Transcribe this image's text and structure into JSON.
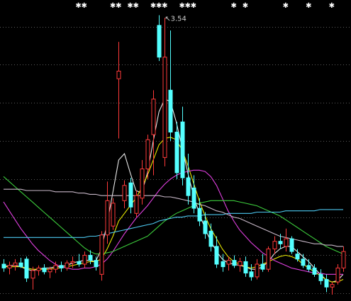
{
  "chart_data": {
    "type": "candlestick",
    "background": "#000000",
    "up_color": "#ff3a3a",
    "down_color": "#54ffff",
    "grid": true,
    "grid_color": "#5a5a5a",
    "ylim": [
      1.29,
      3.66
    ],
    "yticks": [
      3.45,
      3.15,
      2.85,
      2.55,
      2.25,
      1.95,
      1.65,
      1.35
    ],
    "candles": {
      "open": [
        1.58,
        1.55,
        1.57,
        1.59,
        1.62,
        1.47,
        1.53,
        1.55,
        1.52,
        1.54,
        1.57,
        1.55,
        1.59,
        1.6,
        1.58,
        1.65,
        1.61,
        1.5,
        1.81,
        1.88,
        3.04,
        2.08,
        2.22,
        1.98,
        2.1,
        2.33,
        2.6,
        3.46,
        2.42,
        2.95,
        2.62,
        2.7,
        2.26,
        2.18,
        2.02,
        1.92,
        1.84,
        1.72,
        1.6,
        1.58,
        1.61,
        1.57,
        1.6,
        1.52,
        1.48,
        1.58,
        1.54,
        1.7,
        1.76,
        1.72,
        1.78,
        1.66,
        1.62,
        1.57,
        1.55,
        1.5,
        1.46,
        1.4,
        1.44,
        1.55
      ],
      "high": [
        1.62,
        1.6,
        1.62,
        1.63,
        1.64,
        1.56,
        1.57,
        1.58,
        1.56,
        1.6,
        1.6,
        1.61,
        1.64,
        1.66,
        1.68,
        1.69,
        1.64,
        1.84,
        2.23,
        2.1,
        3.33,
        2.24,
        2.26,
        2.16,
        2.4,
        2.6,
        2.95,
        3.54,
        3.52,
        3.42,
        2.7,
        2.82,
        2.45,
        2.28,
        2.1,
        1.99,
        1.9,
        1.8,
        1.66,
        1.64,
        1.65,
        1.63,
        1.64,
        1.58,
        1.62,
        1.66,
        1.72,
        1.8,
        1.82,
        1.86,
        1.8,
        1.7,
        1.66,
        1.62,
        1.58,
        1.54,
        1.5,
        1.44,
        1.58,
        1.72
      ],
      "low": [
        1.52,
        1.5,
        1.53,
        1.55,
        1.44,
        1.38,
        1.49,
        1.5,
        1.47,
        1.51,
        1.52,
        1.53,
        1.55,
        1.56,
        1.55,
        1.58,
        1.53,
        1.45,
        1.74,
        1.85,
        2.57,
        2.02,
        1.98,
        1.95,
        2.05,
        2.25,
        2.28,
        3.18,
        2.35,
        2.55,
        2.25,
        2.2,
        2.05,
        1.98,
        1.88,
        1.78,
        1.68,
        1.55,
        1.52,
        1.53,
        1.55,
        1.52,
        1.48,
        1.45,
        1.46,
        1.52,
        1.52,
        1.66,
        1.7,
        1.68,
        1.66,
        1.6,
        1.55,
        1.52,
        1.48,
        1.42,
        1.36,
        1.34,
        1.42,
        1.52
      ],
      "close": [
        1.55,
        1.57,
        1.59,
        1.56,
        1.47,
        1.53,
        1.55,
        1.52,
        1.54,
        1.57,
        1.55,
        1.59,
        1.6,
        1.58,
        1.65,
        1.61,
        1.56,
        1.81,
        2.08,
        2.06,
        3.1,
        2.2,
        2.03,
        2.12,
        2.33,
        2.56,
        2.88,
        3.21,
        3.21,
        2.62,
        2.3,
        2.26,
        2.12,
        2.02,
        1.92,
        1.82,
        1.72,
        1.58,
        1.56,
        1.61,
        1.57,
        1.6,
        1.51,
        1.48,
        1.58,
        1.54,
        1.7,
        1.76,
        1.74,
        1.78,
        1.68,
        1.62,
        1.57,
        1.54,
        1.5,
        1.45,
        1.4,
        1.42,
        1.55,
        1.68
      ]
    },
    "signals": [
      null,
      null,
      null,
      null,
      null,
      null,
      null,
      null,
      null,
      null,
      null,
      null,
      null,
      "✱",
      "✱",
      null,
      null,
      null,
      null,
      "✱",
      "✱",
      null,
      "✱",
      "✱",
      null,
      null,
      "✱",
      "✱",
      "✱",
      null,
      null,
      "✱",
      "✱",
      "✱",
      null,
      null,
      null,
      null,
      null,
      null,
      "✱",
      null,
      "✱",
      null,
      null,
      null,
      null,
      null,
      null,
      "✱",
      null,
      null,
      null,
      "✱",
      null,
      null,
      null,
      "✱",
      null,
      null
    ],
    "peak_arrow": "↖",
    "peak_value": 3.54,
    "lines": [
      {
        "color": "#e8e8e8",
        "values": [
          1.56,
          1.57,
          1.57,
          1.56,
          1.54,
          1.53,
          1.54,
          1.55,
          1.55,
          1.56,
          1.56,
          1.57,
          1.59,
          1.6,
          1.61,
          1.61,
          1.6,
          1.7,
          1.9,
          2.15,
          2.4,
          2.45,
          2.3,
          2.16,
          2.14,
          2.3,
          2.55,
          2.78,
          2.88,
          2.86,
          2.7,
          2.5,
          2.3,
          2.12,
          1.98,
          1.86,
          1.76,
          1.68,
          1.62,
          1.59,
          1.58,
          1.57,
          1.56,
          1.54,
          1.54,
          1.56,
          1.6,
          1.66,
          1.7,
          1.72,
          1.72,
          1.68,
          1.64,
          1.6,
          1.55,
          1.5,
          1.46,
          1.44,
          1.45,
          1.5
        ]
      },
      {
        "color": "#e6e600",
        "values": [
          1.56,
          1.56,
          1.56,
          1.56,
          1.55,
          1.54,
          1.54,
          1.54,
          1.54,
          1.55,
          1.55,
          1.56,
          1.57,
          1.58,
          1.59,
          1.6,
          1.6,
          1.62,
          1.7,
          1.8,
          1.92,
          1.98,
          2.04,
          2.1,
          2.18,
          2.28,
          2.4,
          2.52,
          2.57,
          2.58,
          2.56,
          2.48,
          2.36,
          2.22,
          2.08,
          1.96,
          1.86,
          1.78,
          1.7,
          1.64,
          1.6,
          1.58,
          1.56,
          1.55,
          1.56,
          1.58,
          1.6,
          1.62,
          1.64,
          1.65,
          1.64,
          1.62,
          1.58,
          1.55,
          1.52,
          1.49,
          1.46,
          1.44,
          1.44,
          1.46
        ]
      },
      {
        "color": "#e040e0",
        "values": [
          2.07,
          2.0,
          1.93,
          1.86,
          1.8,
          1.74,
          1.69,
          1.65,
          1.61,
          1.58,
          1.56,
          1.55,
          1.54,
          1.54,
          1.55,
          1.55,
          1.56,
          1.58,
          1.62,
          1.68,
          1.75,
          1.82,
          1.88,
          1.94,
          1.99,
          2.04,
          2.1,
          2.16,
          2.21,
          2.25,
          2.28,
          2.3,
          2.31,
          2.32,
          2.32,
          2.31,
          2.27,
          2.2,
          2.1,
          2.0,
          1.92,
          1.85,
          1.8,
          1.75,
          1.71,
          1.67,
          1.64,
          1.61,
          1.59,
          1.57,
          1.55,
          1.54,
          1.53,
          1.52,
          1.51,
          1.51,
          1.5,
          1.5,
          1.5,
          1.5
        ]
      },
      {
        "color": "#3ccc3c",
        "values": [
          2.27,
          2.23,
          2.19,
          2.15,
          2.11,
          2.07,
          2.03,
          1.99,
          1.95,
          1.91,
          1.87,
          1.83,
          1.79,
          1.75,
          1.71,
          1.68,
          1.66,
          1.66,
          1.67,
          1.68,
          1.7,
          1.72,
          1.74,
          1.76,
          1.78,
          1.8,
          1.84,
          1.88,
          1.92,
          1.95,
          1.98,
          2.0,
          2.02,
          2.04,
          2.06,
          2.07,
          2.08,
          2.08,
          2.08,
          2.08,
          2.08,
          2.07,
          2.06,
          2.05,
          2.04,
          2.02,
          2.0,
          1.98,
          1.96,
          1.93,
          1.9,
          1.87,
          1.84,
          1.81,
          1.78,
          1.75,
          1.72,
          1.7,
          1.68,
          1.66
        ]
      },
      {
        "color": "#4cc8f0",
        "values": [
          1.79,
          1.79,
          1.79,
          1.79,
          1.79,
          1.79,
          1.79,
          1.79,
          1.79,
          1.79,
          1.79,
          1.79,
          1.79,
          1.79,
          1.79,
          1.8,
          1.8,
          1.81,
          1.82,
          1.83,
          1.84,
          1.85,
          1.86,
          1.87,
          1.88,
          1.89,
          1.9,
          1.92,
          1.93,
          1.94,
          1.95,
          1.95,
          1.96,
          1.96,
          1.96,
          1.97,
          1.97,
          1.97,
          1.97,
          1.98,
          1.98,
          1.98,
          1.98,
          1.98,
          1.99,
          1.99,
          1.99,
          1.99,
          1.99,
          2.0,
          2.0,
          2.0,
          2.0,
          2.0,
          2.0,
          2.01,
          2.01,
          2.01,
          2.01,
          2.01
        ]
      },
      {
        "color": "#c8b8c8",
        "values": [
          2.17,
          2.17,
          2.17,
          2.17,
          2.16,
          2.16,
          2.16,
          2.16,
          2.16,
          2.15,
          2.15,
          2.15,
          2.15,
          2.14,
          2.14,
          2.13,
          2.13,
          2.12,
          2.12,
          2.12,
          2.12,
          2.12,
          2.12,
          2.12,
          2.12,
          2.12,
          2.12,
          2.12,
          2.11,
          2.11,
          2.1,
          2.09,
          2.08,
          2.07,
          2.05,
          2.04,
          2.02,
          2.0,
          1.99,
          1.97,
          1.95,
          1.94,
          1.92,
          1.9,
          1.88,
          1.86,
          1.84,
          1.82,
          1.8,
          1.79,
          1.78,
          1.77,
          1.76,
          1.75,
          1.74,
          1.74,
          1.73,
          1.73,
          1.72,
          1.72
        ]
      }
    ]
  }
}
